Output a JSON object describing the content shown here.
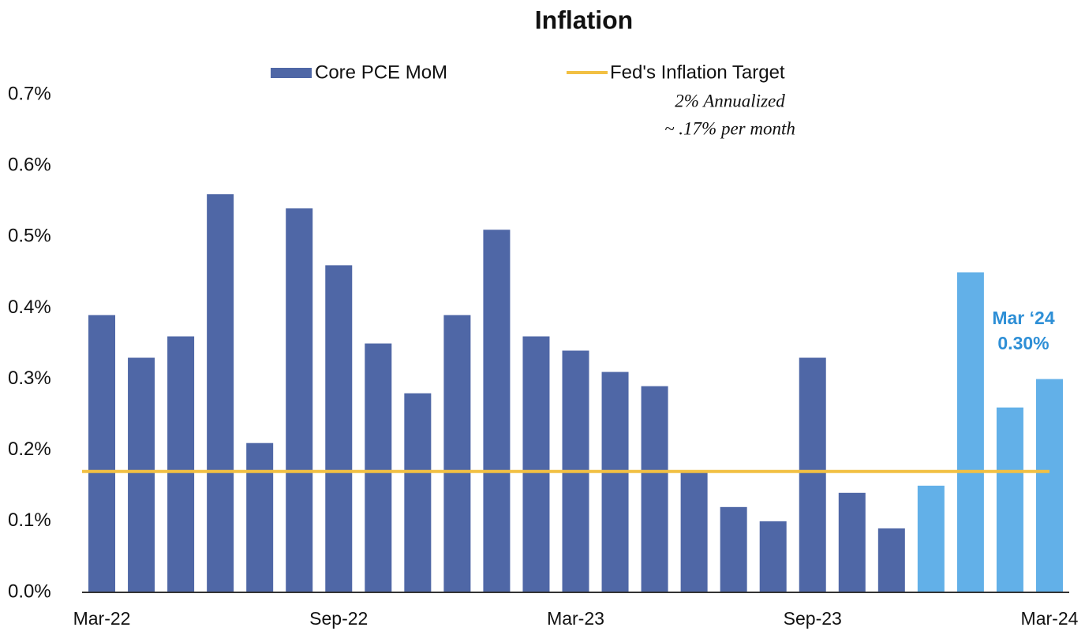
{
  "chart_data": {
    "type": "bar",
    "title": "Inflation",
    "categories": [
      "Mar-22",
      null,
      null,
      null,
      null,
      null,
      "Sep-22",
      null,
      null,
      null,
      null,
      null,
      "Mar-23",
      null,
      null,
      null,
      null,
      null,
      "Sep-23",
      null,
      null,
      null,
      null,
      null,
      "Mar-24"
    ],
    "series": [
      {
        "name": "Core PCE MoM",
        "color": "#4f67a6",
        "values": [
          0.39,
          0.33,
          0.36,
          0.56,
          0.21,
          0.54,
          0.46,
          0.35,
          0.28,
          0.39,
          0.51,
          0.36,
          0.34,
          0.31,
          0.29,
          0.17,
          0.12,
          0.1,
          0.33,
          0.14,
          0.09,
          0.15,
          0.45,
          0.26,
          0.3
        ],
        "colors": [
          "#4f67a6",
          "#4f67a6",
          "#4f67a6",
          "#4f67a6",
          "#4f67a6",
          "#4f67a6",
          "#4f67a6",
          "#4f67a6",
          "#4f67a6",
          "#4f67a6",
          "#4f67a6",
          "#4f67a6",
          "#4f67a6",
          "#4f67a6",
          "#4f67a6",
          "#4f67a6",
          "#4f67a6",
          "#4f67a6",
          "#4f67a6",
          "#4f67a6",
          "#4f67a6",
          "#62b0e8",
          "#62b0e8",
          "#62b0e8",
          "#62b0e8"
        ]
      }
    ],
    "target": {
      "name": "Fed's Inflation Target",
      "value": 0.17,
      "color": "#f2c043"
    },
    "target_note": [
      "2% Annualized",
      "~ .17% per month"
    ],
    "annotation": {
      "lines": [
        "Mar ‘24",
        "0.30%"
      ],
      "color": "#2e8fd6"
    },
    "ylim": [
      0,
      0.7
    ],
    "yticks": [
      {
        "value": 0,
        "label": "0.0%"
      },
      {
        "value": 0.1,
        "label": "0.1%"
      },
      {
        "value": 0.2,
        "label": "0.2%"
      },
      {
        "value": 0.3,
        "label": "0.3%"
      },
      {
        "value": 0.4,
        "label": "0.4%"
      },
      {
        "value": 0.5,
        "label": "0.5%"
      },
      {
        "value": 0.6,
        "label": "0.6%"
      },
      {
        "value": 0.7,
        "label": "0.7%"
      }
    ],
    "grid": false
  }
}
